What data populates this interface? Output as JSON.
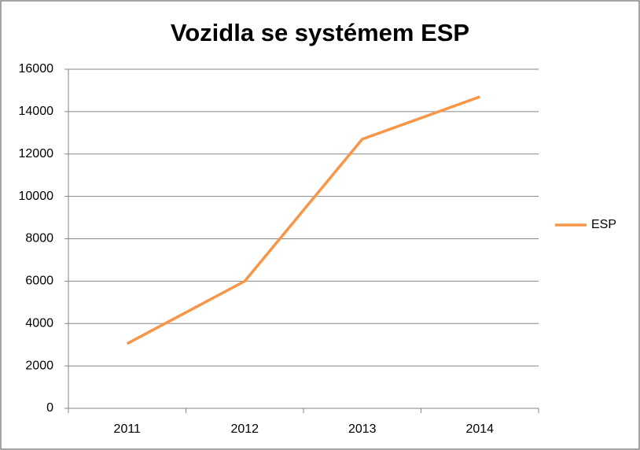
{
  "chart_data": {
    "type": "line",
    "title": "Vozidla se systémem ESP",
    "categories": [
      "2011",
      "2012",
      "2013",
      "2014"
    ],
    "series": [
      {
        "name": "ESP",
        "color": "#f79646",
        "values": [
          3050,
          6000,
          12700,
          14700
        ]
      }
    ],
    "ylim": [
      0,
      16000
    ],
    "yticks": [
      0,
      2000,
      4000,
      6000,
      8000,
      10000,
      12000,
      14000,
      16000
    ],
    "grid": true,
    "legend": "right"
  }
}
